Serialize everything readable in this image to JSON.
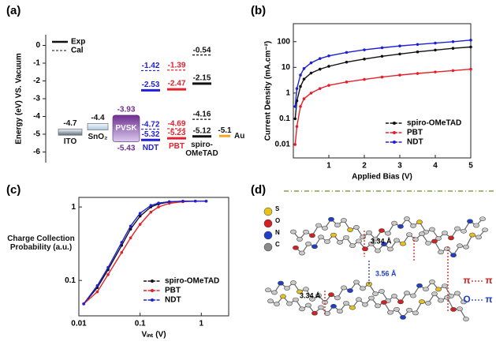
{
  "chart_data": [
    {
      "type": "energy-level",
      "panel": "(a)",
      "ylabel": "Energy (eV) VS. Vacuum",
      "ylim": [
        -6.6,
        0.6
      ],
      "yticks": [
        0,
        -1,
        -2,
        -3,
        -4,
        -5,
        -6
      ],
      "legend": [
        "Exp",
        "Cal"
      ],
      "materials": [
        {
          "name": "ITO",
          "shape": "bar",
          "color": "#5d6d7e",
          "label_color": "#111111",
          "exp": [
            -4.7
          ]
        },
        {
          "name": "SnO₂",
          "shape": "bar",
          "color": "#a8c8e2",
          "label_color": "#111111",
          "exp": [
            -4.4
          ]
        },
        {
          "name": "PVSK",
          "shape": "box",
          "color": "#6e2f92",
          "label_color": "#6e2f92",
          "exp": [
            -3.93,
            -5.43
          ]
        },
        {
          "name": "NDT",
          "shape": "line",
          "color": "#1f1fd6",
          "label_color": "#1f1fd6",
          "exp": [
            -2.53,
            -5.32
          ],
          "cal": [
            -1.42,
            -4.72
          ]
        },
        {
          "name": "PBT",
          "shape": "line",
          "color": "#e5202a",
          "label_color": "#e5202a",
          "exp": [
            -2.47,
            -5.23
          ],
          "cal": [
            -1.39,
            -4.69
          ]
        },
        {
          "name": "spiro-OMeTAD",
          "shape": "line",
          "color": "#111111",
          "label_color": "#111111",
          "exp": [
            -2.15,
            -5.12
          ],
          "cal": [
            -0.54,
            -4.16
          ]
        },
        {
          "name": "Au",
          "shape": "line",
          "color": "#f5a623",
          "label_color": "#111111",
          "exp": [
            -5.1
          ]
        }
      ]
    },
    {
      "type": "line",
      "panel": "(b)",
      "xlabel": "Applied Bias (V)",
      "ylabel": "Current Density (mA.cm⁻²)",
      "x": [
        0.05,
        0.1,
        0.2,
        0.3,
        0.5,
        0.75,
        1,
        1.5,
        2,
        2.5,
        3,
        3.5,
        4,
        4.5,
        5
      ],
      "xlim": [
        0,
        5
      ],
      "xticks": [
        1,
        2,
        3,
        4,
        5
      ],
      "ylim": [
        0.003,
        500
      ],
      "yticks": [
        0.01,
        0.1,
        1,
        10,
        100
      ],
      "ylog": true,
      "legend": "lower right",
      "series": [
        {
          "name": "spiro-OMeTAD",
          "color": "#111111",
          "values": [
            0.1,
            0.5,
            1.8,
            3.5,
            6,
            8.5,
            11,
            16,
            21,
            27,
            33,
            40,
            47,
            55,
            62
          ]
        },
        {
          "name": "PBT",
          "color": "#e5202a",
          "values": [
            0.01,
            0.05,
            0.3,
            0.6,
            1,
            1.5,
            2,
            2.7,
            3.4,
            4.2,
            5,
            5.8,
            6.6,
            7.5,
            8.5
          ]
        },
        {
          "name": "NDT",
          "color": "#1f1fd6",
          "values": [
            0.3,
            1.5,
            5,
            9,
            15,
            22,
            28,
            38,
            48,
            58,
            68,
            78,
            88,
            100,
            115
          ]
        }
      ]
    },
    {
      "type": "line",
      "panel": "(c)",
      "xlabel": "Vᵢₙₜ (V)",
      "ylabel": "Charge Collection Probability (a.u.)",
      "x": [
        0.012,
        0.02,
        0.03,
        0.05,
        0.07,
        0.1,
        0.15,
        0.2,
        0.3,
        0.5,
        0.8,
        1.2
      ],
      "xlim": [
        0.01,
        2.8
      ],
      "xticks": [
        0.01,
        0.1,
        1
      ],
      "xlog": true,
      "ylim": [
        0.033,
        1.35
      ],
      "yticks": [
        0.1,
        1
      ],
      "ylog": true,
      "legend": "lower right",
      "series": [
        {
          "name": "spiro-OMeTAD",
          "color": "#111111",
          "values": [
            0.048,
            0.08,
            0.14,
            0.3,
            0.5,
            0.75,
            1.0,
            1.1,
            1.17,
            1.2,
            1.2,
            1.2
          ]
        },
        {
          "name": "PBT",
          "color": "#e5202a",
          "values": [
            0.048,
            0.07,
            0.12,
            0.24,
            0.38,
            0.58,
            0.85,
            1.0,
            1.12,
            1.18,
            1.2,
            1.2
          ]
        },
        {
          "name": "NDT",
          "color": "#1f1fd6",
          "values": [
            0.048,
            0.085,
            0.15,
            0.33,
            0.55,
            0.82,
            1.05,
            1.13,
            1.18,
            1.2,
            1.2,
            1.2
          ]
        }
      ]
    }
  ],
  "structure": {
    "panel": "(d)",
    "atoms": [
      {
        "label": "S",
        "color": "#e8c21a"
      },
      {
        "label": "O",
        "color": "#d42020"
      },
      {
        "label": "N",
        "color": "#1f3fc8"
      },
      {
        "label": "C",
        "color": "#8a8a8a"
      }
    ],
    "distances": [
      "3.34 Å",
      "3.56 Å",
      "3.34 Å"
    ],
    "legend": [
      {
        "from": "π",
        "to": "π",
        "color": "#d42020"
      },
      {
        "from": "O",
        "to": "π",
        "color": "#1f3fc8"
      }
    ]
  }
}
